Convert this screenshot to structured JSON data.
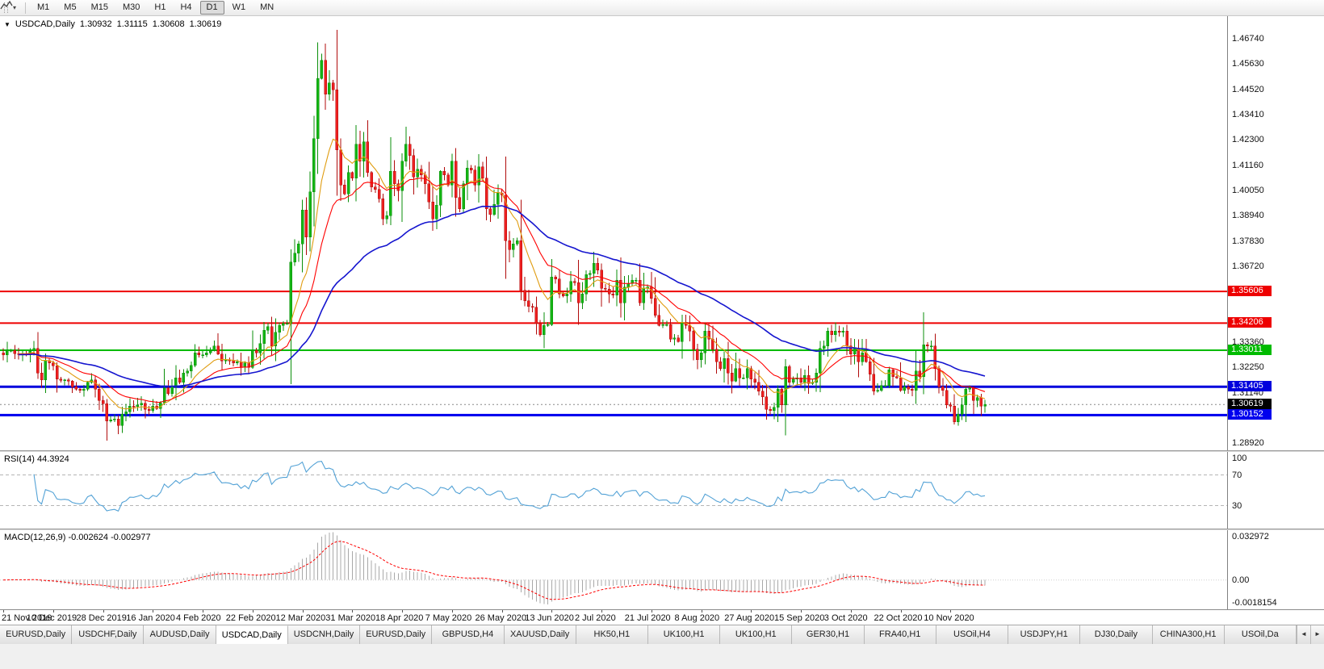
{
  "toolbar": {
    "timeframes": [
      "M1",
      "M5",
      "M15",
      "M30",
      "H1",
      "H4",
      "D1",
      "W1",
      "MN"
    ],
    "active_timeframe": "D1",
    "caret_icon": "▾"
  },
  "chart_header": {
    "marker_icon": "▼",
    "symbol": "USDCAD,Daily",
    "open": "1.30932",
    "high": "1.31115",
    "low": "1.30608",
    "close": "1.30619"
  },
  "chart_data": {
    "type": "candlestick",
    "symbol": "USDCAD",
    "period": "Daily",
    "ylim": [
      1.286,
      1.4774
    ],
    "up_color": "#0b8f0b",
    "up_fill": "#14b514",
    "down_color": "#b00b0b",
    "down_fill": "#ee2020",
    "price_ticks": [
      "1.46740",
      "1.45630",
      "1.44520",
      "1.43410",
      "1.42300",
      "1.41160",
      "1.40050",
      "1.38940",
      "1.37830",
      "1.36720",
      "1.33360",
      "1.32250",
      "1.31140",
      "1.28920"
    ],
    "h_lines": [
      {
        "price": 1.35606,
        "label": "1.35606",
        "color": "#ee0000",
        "width": 2
      },
      {
        "price": 1.34206,
        "label": "1.34206",
        "color": "#ee0000",
        "width": 2
      },
      {
        "price": 1.33011,
        "label": "1.33011",
        "color": "#00bb00",
        "width": 2
      },
      {
        "price": 1.31405,
        "label": "1.31405",
        "color": "#0000dd",
        "width": 3
      },
      {
        "price": 1.30152,
        "label": "1.30152",
        "color": "#0000ee",
        "width": 3
      }
    ],
    "current_price": {
      "value": 1.30619,
      "label": "1.30619",
      "badge_color": "#000000"
    },
    "moving_averages": [
      {
        "period": 10,
        "color": "#e09c10"
      },
      {
        "period": 21,
        "color": "#ff0000"
      },
      {
        "period": 55,
        "color": "#1515cf"
      }
    ],
    "x_labels": [
      "21 Nov 2019",
      "10 Dec 2019",
      "28 Dec 2019",
      "16 Jan 2020",
      "4 Feb 2020",
      "22 Feb 2020",
      "12 Mar 2020",
      "31 Mar 2020",
      "18 Apr 2020",
      "7 May 2020",
      "26 May 2020",
      "13 Jun 2020",
      "2 Jul 2020",
      "21 Jul 2020",
      "8 Aug 2020",
      "27 Aug 2020",
      "15 Sep 2020",
      "3 Oct 2020",
      "22 Oct 2020",
      "10 Nov 2020"
    ],
    "candles_per_label": 13,
    "closes": [
      1.328,
      1.33,
      1.3301,
      1.3287,
      1.3282,
      1.3287,
      1.3285,
      1.3299,
      1.331,
      1.32,
      1.317,
      1.3256,
      1.3246,
      1.3233,
      1.3175,
      1.3168,
      1.317,
      1.3165,
      1.314,
      1.313,
      1.3125,
      1.313,
      1.316,
      1.317,
      1.313,
      1.308,
      1.3065,
      1.299,
      1.2995,
      1.2998,
      1.297,
      1.302,
      1.303,
      1.3055,
      1.3053,
      1.306,
      1.3068,
      1.304,
      1.3035,
      1.3055,
      1.3045,
      1.307,
      1.3135,
      1.311,
      1.314,
      1.318,
      1.316,
      1.32,
      1.321,
      1.3235,
      1.329,
      1.328,
      1.328,
      1.329,
      1.33,
      1.332,
      1.3285,
      1.3255,
      1.3258,
      1.3255,
      1.3245,
      1.325,
      1.3225,
      1.3245,
      1.3225,
      1.33,
      1.329,
      1.333,
      1.339,
      1.3405,
      1.332,
      1.338,
      1.341,
      1.342,
      1.342,
      1.369,
      1.373,
      1.377,
      1.392,
      1.38,
      1.4,
      1.4235,
      1.45,
      1.458,
      1.443,
      1.448,
      1.445,
      1.4185,
      1.403,
      1.399,
      1.4085,
      1.406,
      1.421,
      1.4135,
      1.422,
      1.4085,
      1.402,
      1.401,
      1.397,
      1.388,
      1.3895,
      1.409,
      1.4035,
      1.4005,
      1.4135,
      1.421,
      1.416,
      1.4065,
      1.41,
      1.4075,
      1.4035,
      1.3955,
      1.388,
      1.394,
      1.409,
      1.4075,
      1.403,
      1.4135,
      1.3975,
      1.3925,
      1.4035,
      1.4105,
      1.4095,
      1.403,
      1.411,
      1.406,
      1.3925,
      1.39,
      1.3945,
      1.3995,
      1.3985,
      1.3785,
      1.3745,
      1.377,
      1.3785,
      1.3565,
      1.352,
      1.3495,
      1.349,
      1.342,
      1.337,
      1.341,
      1.3415,
      1.3625,
      1.3615,
      1.355,
      1.354,
      1.355,
      1.3605,
      1.36,
      1.351,
      1.355,
      1.3635,
      1.364,
      1.3685,
      1.3655,
      1.3575,
      1.357,
      1.355,
      1.3545,
      1.361,
      1.351,
      1.358,
      1.3595,
      1.361,
      1.361,
      1.351,
      1.3575,
      1.358,
      1.353,
      1.3455,
      1.341,
      1.3415,
      1.3415,
      1.335,
      1.3355,
      1.334,
      1.3425,
      1.341,
      1.3385,
      1.3305,
      1.326,
      1.329,
      1.3385,
      1.335,
      1.3305,
      1.325,
      1.322,
      1.3265,
      1.32,
      1.3165,
      1.322,
      1.318,
      1.318,
      1.322,
      1.3175,
      1.316,
      1.312,
      1.3095,
      1.304,
      1.3035,
      1.305,
      1.313,
      1.306,
      1.323,
      1.316,
      1.3175,
      1.318,
      1.316,
      1.319,
      1.3155,
      1.316,
      1.32,
      1.331,
      1.332,
      1.3385,
      1.337,
      1.3385,
      1.338,
      1.3385,
      1.332,
      1.3285,
      1.331,
      1.325,
      1.329,
      1.325,
      1.3195,
      1.312,
      1.3125,
      1.3145,
      1.3145,
      1.3215,
      1.3185,
      1.318,
      1.3125,
      1.314,
      1.313,
      1.3125,
      1.321,
      1.3185,
      1.3325,
      1.332,
      1.332,
      1.322,
      1.314,
      1.3125,
      1.306,
      1.3055,
      1.2985,
      1.302,
      1.306,
      1.313,
      1.3135,
      1.308,
      1.3093,
      1.3055,
      1.3062
    ],
    "rsi": {
      "label": "RSI(14) 44.3924",
      "period": 14,
      "current": 44.3924,
      "levels": [
        70,
        30
      ],
      "axis_labels": [
        "100",
        "70",
        "30"
      ],
      "line_color": "#53a2d6"
    },
    "macd": {
      "label": "MACD(12,26,9) -0.002624 -0.002977",
      "fast": 12,
      "slow": 26,
      "signal_period": 9,
      "main_value": -0.002624,
      "signal_value": -0.002977,
      "axis_top": "0.032972",
      "axis_zero": "0.00",
      "axis_bottom": "-0.0018154",
      "histogram_color": "#a8a8a8",
      "signal_color": "#ff0000"
    }
  },
  "tabs": {
    "items": [
      "EURUSD,Daily",
      "USDCHF,Daily",
      "AUDUSD,Daily",
      "USDCAD,Daily",
      "USDCNH,Daily",
      "EURUSD,Daily",
      "GBPUSD,H4",
      "XAUUSD,Daily",
      "HK50,H1",
      "UK100,H1",
      "UK100,H1",
      "GER30,H1",
      "FRA40,H1",
      "USOil,H4",
      "USDJPY,H1",
      "DJ30,Daily",
      "CHINA300,H1",
      "USOil,Da"
    ],
    "active_index": 3,
    "scroll_left_icon": "◄",
    "scroll_right_icon": "►"
  }
}
